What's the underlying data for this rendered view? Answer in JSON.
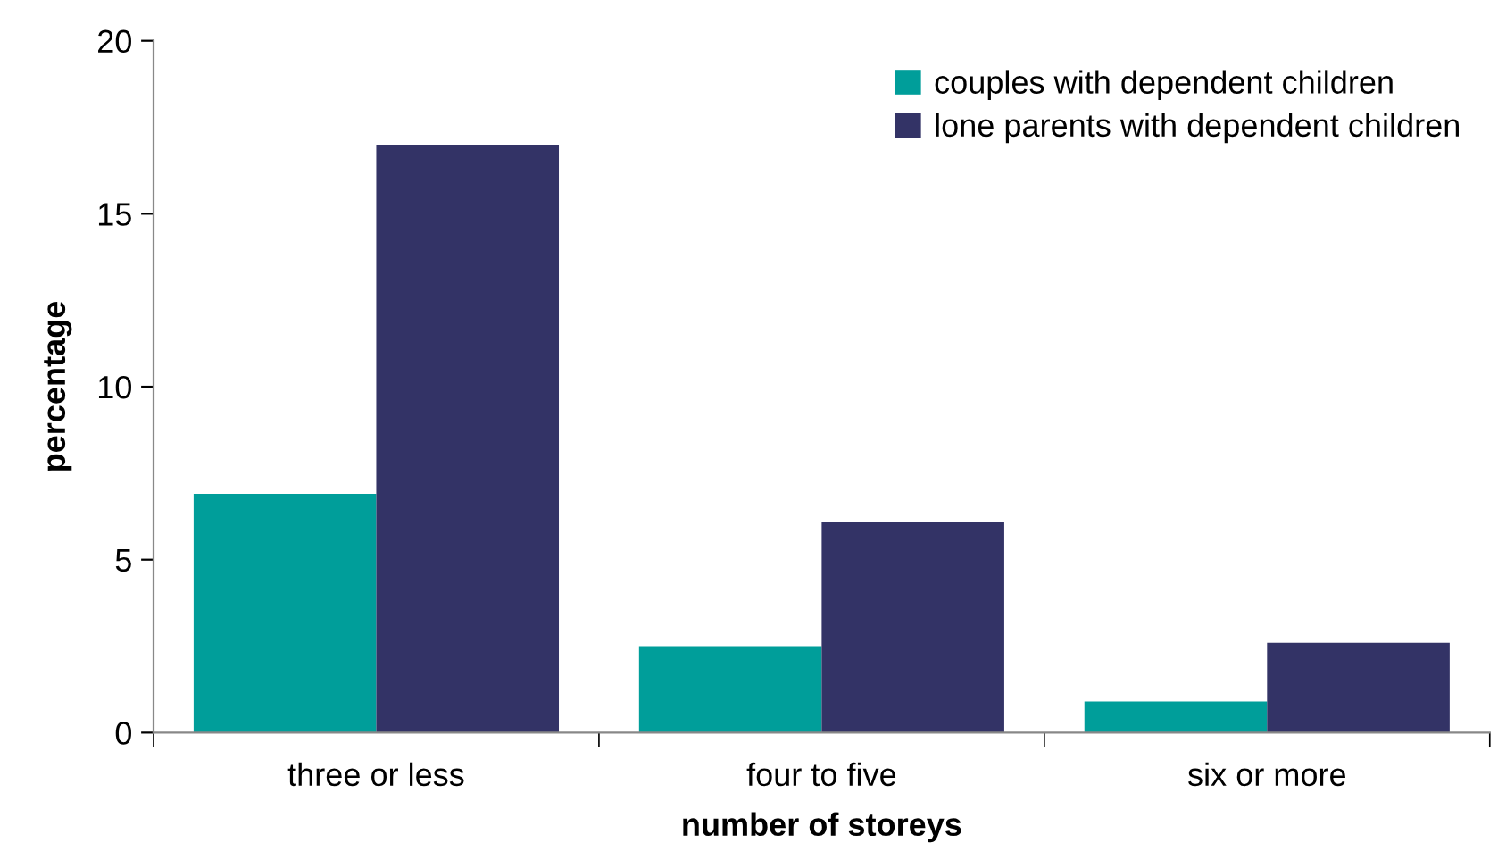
{
  "chart_data": {
    "type": "bar",
    "xlabel": "number of storeys",
    "ylabel": "percentage",
    "categories": [
      "three or less",
      "four to five",
      "six or more"
    ],
    "series": [
      {
        "name": "couples with dependent children",
        "color": "#009e9a",
        "values": [
          6.9,
          2.5,
          0.9
        ]
      },
      {
        "name": "lone parents with dependent children",
        "color": "#333366",
        "values": [
          17.0,
          6.1,
          2.6
        ]
      }
    ],
    "ylim": [
      0,
      20
    ],
    "yticks": [
      0,
      5,
      10,
      15,
      20
    ],
    "grid": false,
    "legend": "top right"
  }
}
